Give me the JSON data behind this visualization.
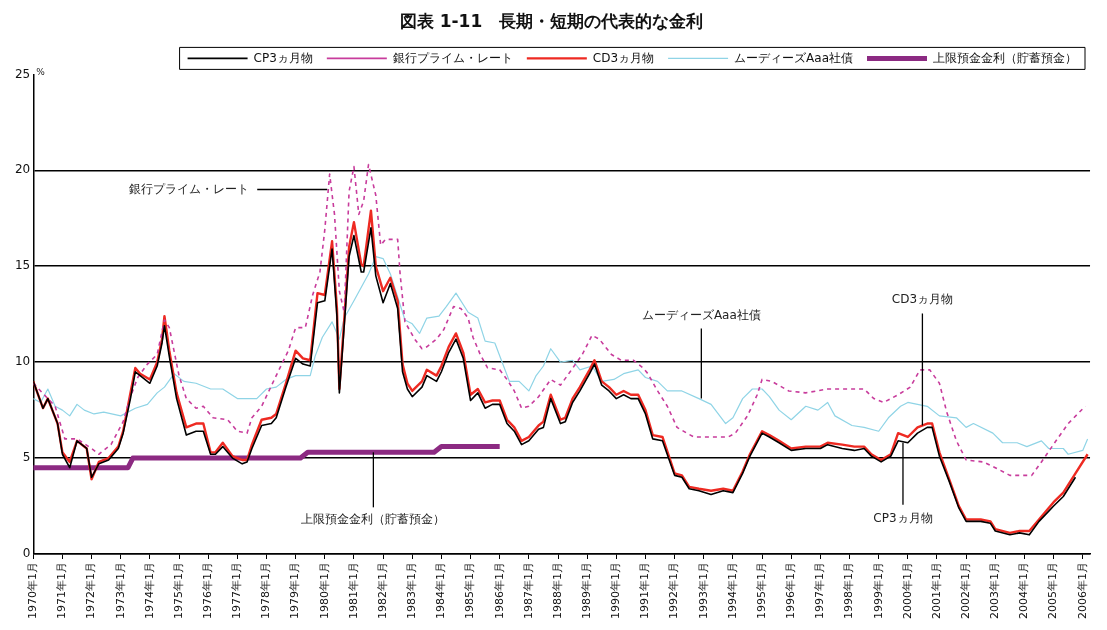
{
  "chart_data": {
    "type": "line",
    "title": "図表 1-11　長期・短期の代表的な金利",
    "ylabel": "%",
    "xlim": [
      "1970-01",
      "2006-04"
    ],
    "xticks": [
      {
        "value": "1970-01",
        "label": "1970年1月"
      },
      {
        "value": "1971-01",
        "label": "1971年1月"
      },
      {
        "value": "1972-01",
        "label": "1972年1月"
      },
      {
        "value": "1973-01",
        "label": "1973年1月"
      },
      {
        "value": "1974-01",
        "label": "1974年1月"
      },
      {
        "value": "1975-01",
        "label": "1975年1月"
      },
      {
        "value": "1976-01",
        "label": "1976年1月"
      },
      {
        "value": "1977-01",
        "label": "1977年1月"
      },
      {
        "value": "1978-01",
        "label": "1978年1月"
      },
      {
        "value": "1979-01",
        "label": "1979年1月"
      },
      {
        "value": "1980-01",
        "label": "1980年1月"
      },
      {
        "value": "1981-01",
        "label": "1981年1月"
      },
      {
        "value": "1982-01",
        "label": "1982年1月"
      },
      {
        "value": "1983-01",
        "label": "1983年1月"
      },
      {
        "value": "1984-01",
        "label": "1984年1月"
      },
      {
        "value": "1985-01",
        "label": "1985年1月"
      },
      {
        "value": "1986-01",
        "label": "1986年1月"
      },
      {
        "value": "1987-01",
        "label": "1987年1月"
      },
      {
        "value": "1988-01",
        "label": "1988年1月"
      },
      {
        "value": "1989-01",
        "label": "1989年1月"
      },
      {
        "value": "1990-01",
        "label": "1990年1月"
      },
      {
        "value": "1991-01",
        "label": "1991年1月"
      },
      {
        "value": "1992-01",
        "label": "1992年1月"
      },
      {
        "value": "1993-01",
        "label": "1993年1月"
      },
      {
        "value": "1994-01",
        "label": "1994年1月"
      },
      {
        "value": "1995-01",
        "label": "1995年1月"
      },
      {
        "value": "1996-01",
        "label": "1996年1月"
      },
      {
        "value": "1997-01",
        "label": "1997年1月"
      },
      {
        "value": "1998-01",
        "label": "1998年1月"
      },
      {
        "value": "1999-01",
        "label": "1999年1月"
      },
      {
        "value": "2000-01",
        "label": "2000年1月"
      },
      {
        "value": "2001-01",
        "label": "2001年1月"
      },
      {
        "value": "2002-01",
        "label": "2002年1月"
      },
      {
        "value": "2003-01",
        "label": "2003年1月"
      },
      {
        "value": "2004-01",
        "label": "2004年1月"
      },
      {
        "value": "2005-01",
        "label": "2005年1月"
      },
      {
        "value": "2006-01",
        "label": "2006年1月"
      }
    ],
    "ylim": [
      0,
      25
    ],
    "yticks": [
      0,
      5,
      10,
      15,
      20,
      25
    ],
    "grid": "y",
    "legend": "top",
    "series": [
      {
        "name": "CP3ヵ月物",
        "color": "#000000",
        "line_style": "solid",
        "x": [
          "1970-01",
          "1970-05",
          "1970-07",
          "1970-11",
          "1971-01",
          "1971-04",
          "1971-07",
          "1971-11",
          "1972-01",
          "1972-04",
          "1972-08",
          "1972-12",
          "1973-02",
          "1973-05",
          "1973-07",
          "1973-09",
          "1974-01",
          "1974-04",
          "1974-06",
          "1974-07",
          "1974-09",
          "1974-12",
          "1975-04",
          "1975-08",
          "1975-11",
          "1976-02",
          "1976-04",
          "1976-07",
          "1976-11",
          "1977-03",
          "1977-05",
          "1977-07",
          "1977-11",
          "1978-03",
          "1978-05",
          "1978-09",
          "1979-01",
          "1979-04",
          "1979-07",
          "1979-10",
          "1980-01",
          "1980-04",
          "1980-06",
          "1980-07",
          "1980-09",
          "1980-11",
          "1981-01",
          "1981-04",
          "1981-05",
          "1981-08",
          "1981-10",
          "1982-01",
          "1982-04",
          "1982-07",
          "1982-09",
          "1982-11",
          "1983-01",
          "1983-05",
          "1983-07",
          "1983-11",
          "1984-01",
          "1984-04",
          "1984-07",
          "1984-10",
          "1985-01",
          "1985-04",
          "1985-07",
          "1985-10",
          "1986-01",
          "1986-04",
          "1986-07",
          "1986-10",
          "1987-01",
          "1987-05",
          "1987-07",
          "1987-10",
          "1988-02",
          "1988-04",
          "1988-07",
          "1988-10",
          "1989-02",
          "1989-04",
          "1989-07",
          "1989-10",
          "1990-01",
          "1990-04",
          "1990-07",
          "1990-10",
          "1991-01",
          "1991-04",
          "1991-08",
          "1992-01",
          "1992-04",
          "1992-07",
          "1992-11",
          "1993-04",
          "1993-09",
          "1994-01",
          "1994-05",
          "1994-08",
          "1995-01",
          "1995-04",
          "1995-08",
          "1996-01",
          "1996-07",
          "1997-01",
          "1997-04",
          "1997-10",
          "1998-03",
          "1998-07",
          "1998-10",
          "1999-02",
          "1999-06",
          "1999-09",
          "2000-01",
          "2000-05",
          "2000-09",
          "2000-11",
          "2001-02",
          "2001-06",
          "2001-10",
          "2002-01",
          "2002-07",
          "2002-11",
          "2003-01",
          "2003-07",
          "2003-11",
          "2004-03",
          "2004-07",
          "2005-01",
          "2005-05",
          "2005-10"
        ],
        "values": [
          9.0,
          7.6,
          8.1,
          6.8,
          5.2,
          4.5,
          5.9,
          5.5,
          4.0,
          4.7,
          4.9,
          5.5,
          6.3,
          8.1,
          9.5,
          9.3,
          8.9,
          9.8,
          11.0,
          11.9,
          10.3,
          8.1,
          6.2,
          6.4,
          6.4,
          5.2,
          5.2,
          5.6,
          5.0,
          4.7,
          4.8,
          5.5,
          6.7,
          6.8,
          7.1,
          8.7,
          10.2,
          9.9,
          9.8,
          13.1,
          13.2,
          15.9,
          12.4,
          8.4,
          11.9,
          15.5,
          16.6,
          14.7,
          14.7,
          17.0,
          14.5,
          13.1,
          14.1,
          12.8,
          9.5,
          8.6,
          8.2,
          8.7,
          9.3,
          9.0,
          9.5,
          10.5,
          11.2,
          10.2,
          8.0,
          8.4,
          7.6,
          7.8,
          7.8,
          6.8,
          6.4,
          5.7,
          5.9,
          6.5,
          6.6,
          8.1,
          6.8,
          6.9,
          7.9,
          8.5,
          9.4,
          9.9,
          8.8,
          8.5,
          8.1,
          8.3,
          8.1,
          8.1,
          7.3,
          6.0,
          5.9,
          4.1,
          4.0,
          3.4,
          3.3,
          3.1,
          3.3,
          3.2,
          4.2,
          5.1,
          6.3,
          6.1,
          5.8,
          5.4,
          5.5,
          5.5,
          5.7,
          5.5,
          5.4,
          5.5,
          5.1,
          4.8,
          5.1,
          5.9,
          5.8,
          6.3,
          6.6,
          6.6,
          5.1,
          3.8,
          2.4,
          1.7,
          1.7,
          1.6,
          1.2,
          1.0,
          1.1,
          1.0,
          1.7,
          2.5,
          3.0,
          4.0
        ]
      },
      {
        "name": "銀行プライム・レート",
        "color": "#c83c9c",
        "line_style": "dashed",
        "x": [
          "1970-01",
          "1970-10",
          "1971-02",
          "1971-07",
          "1972-01",
          "1972-04",
          "1972-09",
          "1973-02",
          "1973-05",
          "1973-08",
          "1973-12",
          "1974-04",
          "1974-07",
          "1974-09",
          "1975-01",
          "1975-04",
          "1975-08",
          "1975-11",
          "1976-03",
          "1976-09",
          "1977-01",
          "1977-05",
          "1977-07",
          "1977-11",
          "1978-05",
          "1978-10",
          "1979-01",
          "1979-05",
          "1979-08",
          "1979-11",
          "1980-01",
          "1980-03",
          "1980-05",
          "1980-07",
          "1980-09",
          "1980-11",
          "1981-01",
          "1981-03",
          "1981-05",
          "1981-07",
          "1981-10",
          "1981-12",
          "1982-02",
          "1982-07",
          "1982-08",
          "1982-10",
          "1983-02",
          "1983-05",
          "1983-07",
          "1983-11",
          "1984-02",
          "1984-06",
          "1984-09",
          "1984-12",
          "1985-02",
          "1985-05",
          "1985-08",
          "1986-01",
          "1986-04",
          "1986-07",
          "1986-10",
          "1987-01",
          "1987-05",
          "1987-10",
          "1988-02",
          "1988-06",
          "1988-11",
          "1989-03",
          "1989-06",
          "1989-11",
          "1990-03",
          "1990-08",
          "1990-12",
          "1991-02",
          "1991-06",
          "1991-10",
          "1992-02",
          "1992-06",
          "1992-09",
          "1993-11",
          "1994-02",
          "1994-07",
          "1994-11",
          "1995-01",
          "1995-05",
          "1995-12",
          "1996-07",
          "1997-04",
          "1998-07",
          "1998-11",
          "1999-03",
          "1999-09",
          "2000-02",
          "2000-06",
          "2000-10",
          "2001-02",
          "2001-05",
          "2001-09",
          "2002-01",
          "2002-08",
          "2003-01",
          "2003-07",
          "2004-04",
          "2004-08",
          "2005-02",
          "2005-07",
          "2006-02"
        ],
        "values": [
          8.9,
          7.7,
          6.0,
          6.0,
          5.5,
          5.2,
          5.7,
          6.9,
          8.2,
          9.2,
          9.9,
          10.4,
          12.2,
          11.8,
          9.3,
          8.1,
          7.6,
          7.7,
          7.1,
          7.0,
          6.4,
          6.3,
          7.1,
          7.7,
          9.3,
          10.6,
          11.8,
          11.8,
          13.5,
          14.7,
          16.9,
          19.8,
          17.7,
          13.7,
          12.6,
          18.9,
          20.2,
          17.7,
          18.4,
          20.3,
          18.7,
          16.1,
          16.4,
          16.4,
          14.6,
          12.1,
          11.2,
          10.7,
          10.8,
          11.2,
          11.7,
          12.9,
          12.8,
          12.3,
          11.3,
          10.4,
          9.7,
          9.6,
          9.1,
          8.5,
          7.6,
          7.7,
          8.2,
          9.1,
          8.8,
          9.5,
          10.4,
          11.4,
          11.2,
          10.4,
          10.1,
          10.1,
          9.7,
          9.4,
          8.5,
          7.7,
          6.6,
          6.3,
          6.1,
          6.1,
          6.3,
          7.2,
          8.3,
          9.1,
          9.0,
          8.5,
          8.4,
          8.6,
          8.6,
          8.1,
          7.9,
          8.3,
          8.7,
          9.6,
          9.6,
          8.9,
          7.4,
          5.9,
          4.9,
          4.8,
          4.5,
          4.1,
          4.1,
          4.8,
          5.9,
          6.8,
          7.7
        ]
      },
      {
        "name": "CD3ヵ月物",
        "color": "#ee2a22",
        "line_style": "solid",
        "x": [
          "1970-01",
          "1970-05",
          "1970-07",
          "1970-11",
          "1971-01",
          "1971-04",
          "1971-07",
          "1971-11",
          "1972-01",
          "1972-04",
          "1972-08",
          "1972-12",
          "1973-02",
          "1973-05",
          "1973-07",
          "1973-09",
          "1974-01",
          "1974-04",
          "1974-06",
          "1974-07",
          "1974-09",
          "1974-12",
          "1975-04",
          "1975-08",
          "1975-11",
          "1976-02",
          "1976-04",
          "1976-07",
          "1976-11",
          "1977-03",
          "1977-05",
          "1977-07",
          "1977-11",
          "1978-03",
          "1978-05",
          "1978-09",
          "1979-01",
          "1979-04",
          "1979-07",
          "1979-10",
          "1980-01",
          "1980-04",
          "1980-06",
          "1980-07",
          "1980-09",
          "1980-11",
          "1981-01",
          "1981-04",
          "1981-05",
          "1981-08",
          "1981-10",
          "1982-01",
          "1982-04",
          "1982-07",
          "1982-09",
          "1982-11",
          "1983-01",
          "1983-05",
          "1983-07",
          "1983-11",
          "1984-01",
          "1984-04",
          "1984-07",
          "1984-10",
          "1985-01",
          "1985-04",
          "1985-07",
          "1985-10",
          "1986-01",
          "1986-04",
          "1986-07",
          "1986-10",
          "1987-01",
          "1987-05",
          "1987-07",
          "1987-10",
          "1988-02",
          "1988-04",
          "1988-07",
          "1988-10",
          "1989-02",
          "1989-04",
          "1989-07",
          "1989-10",
          "1990-01",
          "1990-04",
          "1990-07",
          "1990-10",
          "1991-01",
          "1991-04",
          "1991-08",
          "1992-01",
          "1992-04",
          "1992-07",
          "1992-11",
          "1993-04",
          "1993-09",
          "1994-01",
          "1994-05",
          "1994-08",
          "1995-01",
          "1995-04",
          "1995-08",
          "1996-01",
          "1996-07",
          "1997-01",
          "1997-04",
          "1997-10",
          "1998-03",
          "1998-07",
          "1998-10",
          "1999-02",
          "1999-06",
          "1999-09",
          "2000-01",
          "2000-05",
          "2000-09",
          "2000-11",
          "2001-02",
          "2001-06",
          "2001-10",
          "2002-01",
          "2002-07",
          "2002-11",
          "2003-01",
          "2003-07",
          "2003-11",
          "2004-03",
          "2004-07",
          "2005-01",
          "2005-05",
          "2005-10",
          "2006-03"
        ],
        "values": [
          9.0,
          7.6,
          8.1,
          6.8,
          5.3,
          4.8,
          5.9,
          5.5,
          3.9,
          4.8,
          5.0,
          5.6,
          6.4,
          8.4,
          9.7,
          9.4,
          9.1,
          10.0,
          11.2,
          12.4,
          10.6,
          8.4,
          6.6,
          6.8,
          6.8,
          5.3,
          5.3,
          5.8,
          5.1,
          4.9,
          4.9,
          5.7,
          7.0,
          7.1,
          7.3,
          8.9,
          10.6,
          10.2,
          10.1,
          13.6,
          13.5,
          16.3,
          12.8,
          8.6,
          12.2,
          16.0,
          17.3,
          15.1,
          15.0,
          17.9,
          15.0,
          13.7,
          14.4,
          13.2,
          9.9,
          8.9,
          8.5,
          9.0,
          9.6,
          9.3,
          9.8,
          10.8,
          11.5,
          10.5,
          8.3,
          8.6,
          7.9,
          8.0,
          8.0,
          7.0,
          6.6,
          5.9,
          6.1,
          6.7,
          6.9,
          8.3,
          7.0,
          7.1,
          8.1,
          8.7,
          9.6,
          10.1,
          9.0,
          8.7,
          8.3,
          8.5,
          8.3,
          8.3,
          7.5,
          6.2,
          6.1,
          4.2,
          4.1,
          3.5,
          3.4,
          3.3,
          3.4,
          3.3,
          4.3,
          5.2,
          6.4,
          6.2,
          5.9,
          5.5,
          5.6,
          5.6,
          5.8,
          5.7,
          5.6,
          5.6,
          5.2,
          4.9,
          5.2,
          6.3,
          6.1,
          6.6,
          6.8,
          6.8,
          5.3,
          3.9,
          2.5,
          1.8,
          1.8,
          1.7,
          1.3,
          1.1,
          1.2,
          1.2,
          1.8,
          2.7,
          3.2,
          4.2,
          5.2
        ]
      },
      {
        "name": "ムーディーズAaa社債",
        "color": "#8fd4e6",
        "line_style": "solid",
        "x": [
          "1970-01",
          "1970-04",
          "1970-07",
          "1970-10",
          "1971-01",
          "1971-04",
          "1971-07",
          "1971-10",
          "1972-02",
          "1972-06",
          "1973-01",
          "1973-07",
          "1973-12",
          "1974-04",
          "1974-07",
          "1974-11",
          "1975-03",
          "1975-08",
          "1976-02",
          "1976-07",
          "1977-01",
          "1977-05",
          "1977-09",
          "1978-01",
          "1978-05",
          "1978-09",
          "1979-01",
          "1979-07",
          "1979-09",
          "1979-12",
          "1980-04",
          "1980-07",
          "1980-09",
          "1981-01",
          "1981-07",
          "1981-10",
          "1982-01",
          "1982-04",
          "1982-10",
          "1983-01",
          "1983-04",
          "1983-07",
          "1983-12",
          "1984-03",
          "1984-07",
          "1984-12",
          "1985-04",
          "1985-07",
          "1985-11",
          "1986-02",
          "1986-05",
          "1986-09",
          "1987-01",
          "1987-04",
          "1987-07",
          "1987-10",
          "1988-02",
          "1988-07",
          "1988-10",
          "1989-03",
          "1989-07",
          "1989-12",
          "1990-04",
          "1990-10",
          "1991-01",
          "1991-06",
          "1991-10",
          "1992-04",
          "1992-11",
          "1993-04",
          "1993-10",
          "1994-01",
          "1994-05",
          "1994-09",
          "1995-01",
          "1995-04",
          "1995-08",
          "1996-01",
          "1996-07",
          "1996-12",
          "1997-04",
          "1997-07",
          "1998-02",
          "1998-07",
          "1999-01",
          "1999-05",
          "1999-10",
          "2000-01",
          "2000-09",
          "2001-02",
          "2001-09",
          "2002-01",
          "2002-04",
          "2002-12",
          "2003-04",
          "2003-10",
          "2004-02",
          "2004-08",
          "2004-11",
          "2005-05",
          "2005-07",
          "2006-01",
          "2006-03"
        ],
        "values": [
          8.1,
          7.9,
          8.6,
          7.7,
          7.5,
          7.2,
          7.8,
          7.5,
          7.3,
          7.4,
          7.2,
          7.6,
          7.8,
          8.4,
          8.7,
          9.4,
          9.0,
          8.9,
          8.6,
          8.6,
          8.1,
          8.1,
          8.1,
          8.6,
          8.7,
          9.1,
          9.3,
          9.3,
          10.3,
          11.3,
          12.1,
          11.2,
          12.3,
          13.2,
          14.6,
          15.5,
          15.4,
          14.6,
          12.2,
          12.0,
          11.5,
          12.3,
          12.4,
          12.9,
          13.6,
          12.6,
          12.3,
          11.1,
          11.0,
          10.0,
          9.0,
          9.0,
          8.5,
          9.3,
          9.8,
          10.7,
          10.0,
          10.1,
          9.6,
          9.8,
          9.0,
          9.1,
          9.4,
          9.6,
          9.2,
          9.0,
          8.5,
          8.5,
          8.1,
          7.8,
          6.8,
          7.1,
          8.1,
          8.6,
          8.6,
          8.2,
          7.5,
          7.0,
          7.7,
          7.5,
          7.9,
          7.2,
          6.7,
          6.6,
          6.4,
          7.1,
          7.7,
          7.9,
          7.7,
          7.2,
          7.1,
          6.6,
          6.8,
          6.3,
          5.8,
          5.8,
          5.6,
          5.9,
          5.5,
          5.5,
          5.2,
          5.4,
          6.0
        ]
      },
      {
        "name": "上限預金金利（貯蓄預金）",
        "color": "#8c2a82",
        "line_style": "solid",
        "x": [
          "1970-01",
          "1973-04",
          "1973-06",
          "1979-03",
          "1979-06",
          "1983-10",
          "1984-01",
          "1986-01"
        ],
        "values": [
          4.5,
          4.5,
          5.0,
          5.0,
          5.3,
          5.3,
          5.6,
          5.6
        ]
      }
    ],
    "annotations": [
      {
        "text": "銀行プライム・レート",
        "x": "1980-02",
        "y": 19.0
      },
      {
        "text": "ムーディーズAaa社債",
        "x": "1992-12",
        "y": 8.1
      },
      {
        "text": "CD3ヵ月物",
        "x": "2000-07",
        "y": 6.7
      },
      {
        "text": "CP3ヵ月物",
        "x": "1999-11",
        "y": 5.8
      },
      {
        "text": "上限預金金利（貯蓄預金）",
        "x": "1981-09",
        "y": 5.3
      }
    ]
  }
}
